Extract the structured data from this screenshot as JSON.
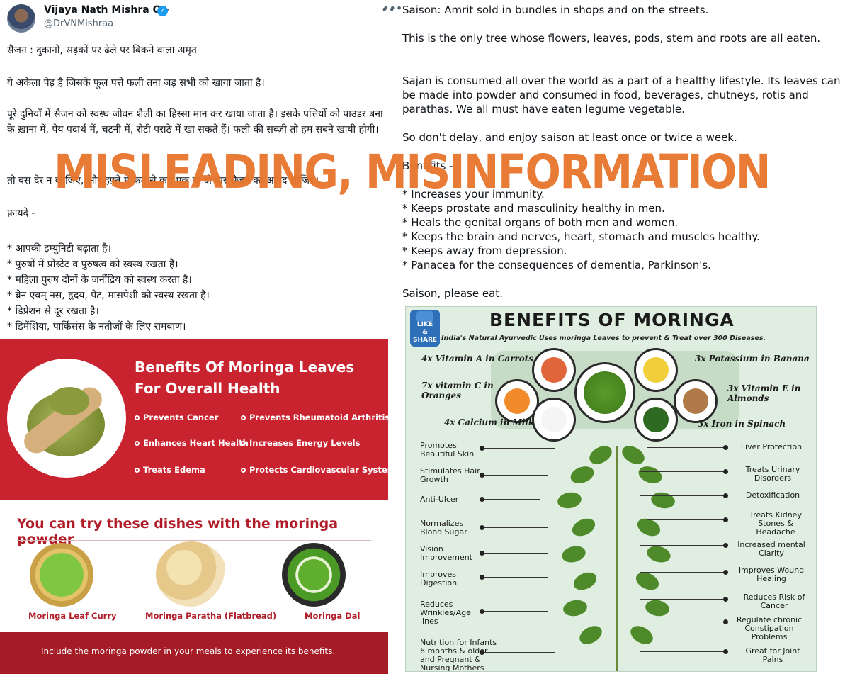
{
  "tweet_hindi": {
    "author": "Vijaya Nath Mishra O+",
    "handle": "@DrVNMishraa",
    "lines": [
      "सैजन : दुकानों, सड़कों पर ढेले पर बिकने वाला अमृत",
      "ये अकेला पेड़ है जिसके फूल पत्ते फली तना जड़ सभी को खाया जाता है।",
      "पूरे दुनियाँ में सैजन को स्वस्थ जीवन शैली का हिस्सा मान कर खाया जाता है। इसके पत्तियों को पाउडर बना के ख़ाना में, पेय पदार्थ में, चटनी में, रोटी पराठे में खा सकते हैं। फली की सब्ज़ी तो हम सबने खायी होगी।",
      "तो बस देर न कीजिए, और हफ़्ते में कम से कम एक या दो बार सैजन का आनंद लीजिए।",
      "फ़ायदे -"
    ],
    "benefits": [
      "* आपकी इम्युनिटी बढ़ाता है।",
      "* पुरुषों में प्रोस्टेट व पुरुषत्व को स्वस्थ रखता है।",
      "* महिला पुरुष दोनों के जनींद्रिय को स्वस्थ करता है।",
      "* ब्रेन एवम् नस, हृदय, पेट, मासपेशी को स्वस्थ रखता है।",
      "* डिप्रेशन से दूर रखता है।",
      "* डिमेंशिया, पार्किंसंस के नतीजों के लिए रामबाण।"
    ]
  },
  "red_card": {
    "title_line1": "Benefits Of Moringa Leaves",
    "title_line2": "For Overall Health",
    "items": [
      "Prevents Cancer",
      "Prevents Rheumatoid Arthritis",
      "Enhances Heart Health",
      "Increases Energy Levels",
      "Treats Edema",
      "Protects Cardiovascular System"
    ]
  },
  "dishes": {
    "title": "You can try these dishes with the moringa powder",
    "items": [
      "Moringa Leaf Curry",
      "Moringa Paratha (Flatbread)",
      "Moringa Dal"
    ],
    "footer": "Include the moringa powder in your meals to experience its benefits."
  },
  "tweet_english": {
    "paragraphs": [
      "Saison: Amrit sold in bundles in shops and on the streets.",
      "This is the only tree whose flowers, leaves, pods, stem and roots are all eaten.",
      "Sajan is consumed all over the world as a part of a healthy lifestyle. Its leaves can be made into powder and consumed in food, beverages, chutneys, rotis and parathas. We all must have eaten legume vegetable.",
      "So don't delay, and enjoy saison at least once or twice a week.",
      "Benefits -"
    ],
    "benefits": [
      "* Increases your immunity.",
      "* Keeps prostate and masculinity healthy in men.",
      "* Heals the genital organs of both men and women.",
      "* Keeps the brain and nerves, heart, stomach and muscles healthy.",
      "* Keeps away from depression.",
      "* Panacea for the consequences of dementia, Parkinson's."
    ],
    "closing": "Saison, please eat."
  },
  "infographic": {
    "title": "BENEFITS OF MORINGA",
    "subtitle": "India's Natural Ayurvedic Uses moringa Leaves to prevent & Treat over 300 Diseases.",
    "badge_line1": "LIKE",
    "badge_line2": "& SHARE",
    "comparisons": [
      "4x Vitamin A in Carrots",
      "3x Potassium in Banana",
      "7x vitamin C in Oranges",
      "3x Vitamin E in Almonds",
      "4x Calcium in Milk",
      "3x Iron in Spinach"
    ],
    "left_benefits": [
      "Promotes Beautiful Skin",
      "Stimulates Hair Growth",
      "Anti-Ulcer",
      "Normalizes Blood Sugar",
      "Vision Improvement",
      "Improves Digestion",
      "Reduces Wrinkles/Age lines",
      "Nutrition for Infants 6 months & older and Pregnant & Nursing Mothers"
    ],
    "right_benefits": [
      "Liver Protection",
      "Treats Urinary Disorders",
      "Detoxification",
      "Treats Kidney Stones & Headache",
      "Increased mental Clarity",
      "Improves Wound Healing",
      "Reduces Risk of Cancer",
      "Regulate chronic Constipation Problems",
      "Great for Joint Pains"
    ]
  },
  "stamp": {
    "text": "MISLEADING, MISINFORMATION",
    "color": "#e8762d"
  },
  "colors": {
    "card_red": "#c8232f",
    "footer_red": "#a51b26",
    "verified_blue": "#1d9bf0"
  }
}
